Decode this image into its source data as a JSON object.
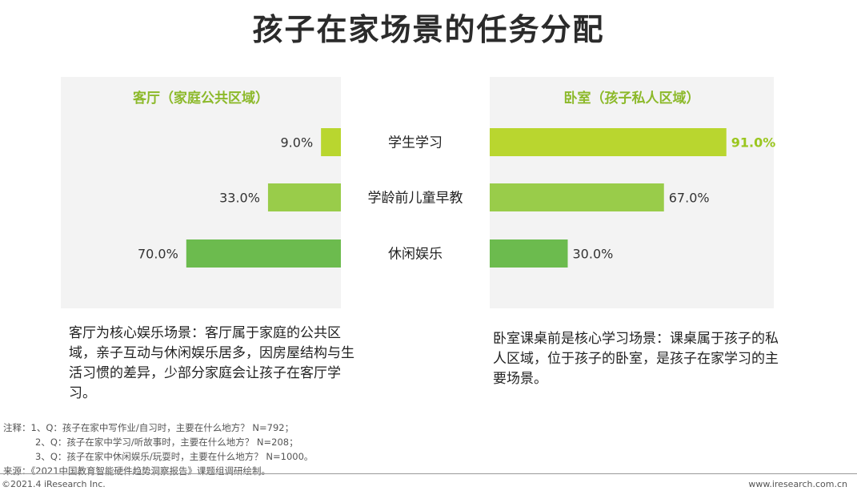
{
  "title": "孩子在家场景的任务分配",
  "chart_data": {
    "type": "bar",
    "categories": [
      "学生学习",
      "学龄前儿童早教",
      "休闲娱乐"
    ],
    "series": [
      {
        "name": "客厅（家庭公共区域）",
        "values": [
          9.0,
          33.0,
          70.0
        ],
        "value_labels": [
          "9.0%",
          "33.0%",
          "70.0%"
        ],
        "colors": [
          "#b9d62f",
          "#99cc4a",
          "#6cbb4e"
        ],
        "direction": "left"
      },
      {
        "name": "卧室（孩子私人区域）",
        "values": [
          91.0,
          67.0,
          30.0
        ],
        "value_labels": [
          "91.0%",
          "67.0%",
          "30.0%"
        ],
        "colors": [
          "#b9d62f",
          "#99cc4a",
          "#6cbb4e"
        ],
        "direction": "right",
        "highlight_index": 0
      }
    ],
    "xlim": [
      0,
      100
    ],
    "highlight_color": "#9ac61e"
  },
  "panels": {
    "left_heading": "客厅（家庭公共区域）",
    "right_heading": "卧室（孩子私人区域）"
  },
  "descriptions": {
    "left": "客厅为核心娱乐场景：客厅属于家庭的公共区域，亲子互动与休闲娱乐居多，因房屋结构与生活习惯的差异，少部分家庭会让孩子在客厅学习。",
    "right": "卧室课桌前是核心学习场景：课桌属于孩子的私人区域，位于孩子的卧室，是孩子在家学习的主要场景。"
  },
  "notes": {
    "line1": "注释：1、Q：孩子在家中写作业/自习时，主要在什么地方？ N=792；",
    "line2": "2、Q：孩子在家中学习/听故事时，主要在什么地方？ N=208；",
    "line3": "3、Q：孩子在家中休闲娱乐/玩耍时，主要在什么地方？ N=1000。",
    "source": "来源：《2021中国教育智能硬件趋势洞察报告》课题组调研绘制。"
  },
  "footer": {
    "copyright": "©2021.4 iResearch Inc.",
    "website": "www.iresearch.com.cn"
  }
}
